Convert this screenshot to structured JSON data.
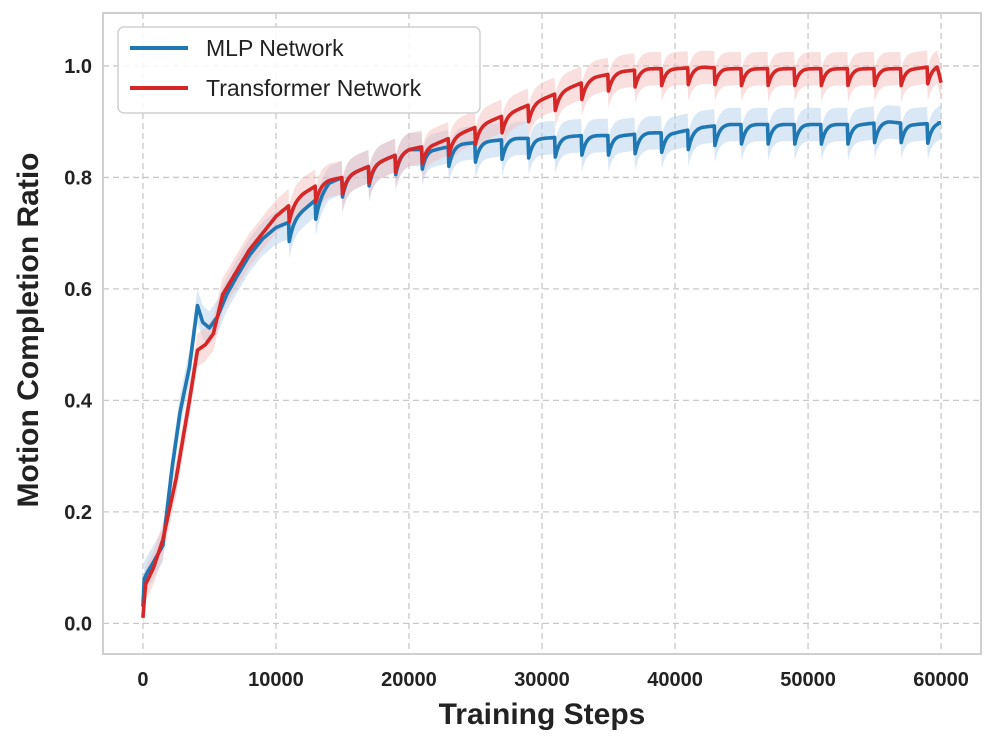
{
  "chart_data": {
    "type": "line",
    "title": "",
    "xlabel": "Training Steps",
    "ylabel": "Motion Completion Ratio",
    "xlim": [
      -3000,
      63000
    ],
    "ylim": [
      -0.055,
      1.095
    ],
    "xticks": [
      0,
      10000,
      20000,
      30000,
      40000,
      50000,
      60000
    ],
    "xtick_labels": [
      "0",
      "10000",
      "20000",
      "30000",
      "40000",
      "50000",
      "60000"
    ],
    "yticks": [
      0.0,
      0.2,
      0.4,
      0.6,
      0.8,
      1.0
    ],
    "ytick_labels": [
      "0.0",
      "0.2",
      "0.4",
      "0.6",
      "0.8",
      "1.0"
    ],
    "grid": true,
    "legend_position": "top-left",
    "series": [
      {
        "name": "MLP Network",
        "color": "#1f77b4",
        "band_color": "#aecde8",
        "points": [
          [
            0,
            0.03
          ],
          [
            100,
            0.08
          ],
          [
            300,
            0.09
          ],
          [
            800,
            0.11
          ],
          [
            1500,
            0.14
          ],
          [
            2200,
            0.28
          ],
          [
            2800,
            0.38
          ],
          [
            3500,
            0.46
          ],
          [
            4100,
            0.57
          ],
          [
            4500,
            0.54
          ],
          [
            5000,
            0.53
          ],
          [
            5600,
            0.55
          ],
          [
            6300,
            0.59
          ],
          [
            7000,
            0.62
          ],
          [
            8000,
            0.66
          ],
          [
            9000,
            0.69
          ],
          [
            10000,
            0.71
          ],
          [
            11000,
            0.72
          ],
          [
            12000,
            0.74
          ],
          [
            13000,
            0.76
          ],
          [
            14000,
            0.79
          ],
          [
            15000,
            0.8
          ],
          [
            16000,
            0.81
          ],
          [
            17000,
            0.82
          ],
          [
            18000,
            0.83
          ],
          [
            20000,
            0.85
          ],
          [
            22000,
            0.85
          ],
          [
            24000,
            0.86
          ],
          [
            26000,
            0.865
          ],
          [
            28000,
            0.87
          ],
          [
            30000,
            0.87
          ],
          [
            33000,
            0.875
          ],
          [
            36000,
            0.875
          ],
          [
            38000,
            0.88
          ],
          [
            40000,
            0.88
          ],
          [
            42000,
            0.89
          ],
          [
            44000,
            0.895
          ],
          [
            46000,
            0.895
          ],
          [
            48000,
            0.895
          ],
          [
            50000,
            0.895
          ],
          [
            52000,
            0.895
          ],
          [
            54000,
            0.895
          ],
          [
            56000,
            0.9
          ],
          [
            58000,
            0.895
          ],
          [
            60000,
            0.898
          ]
        ],
        "band_halfwidth": 0.03,
        "sawtooth_period": 1000,
        "sawtooth_start": 11000,
        "sawtooth_depth": 0.035
      },
      {
        "name": "Transformer Network",
        "color": "#d62728",
        "band_color": "#f4b9b9",
        "points": [
          [
            0,
            0.01
          ],
          [
            200,
            0.07
          ],
          [
            800,
            0.1
          ],
          [
            1500,
            0.15
          ],
          [
            2500,
            0.26
          ],
          [
            3500,
            0.4
          ],
          [
            4100,
            0.49
          ],
          [
            4700,
            0.5
          ],
          [
            5300,
            0.52
          ],
          [
            6000,
            0.59
          ],
          [
            7000,
            0.63
          ],
          [
            8000,
            0.67
          ],
          [
            9000,
            0.7
          ],
          [
            10000,
            0.73
          ],
          [
            11000,
            0.75
          ],
          [
            12000,
            0.77
          ],
          [
            13000,
            0.785
          ],
          [
            14000,
            0.795
          ],
          [
            15000,
            0.8
          ],
          [
            16000,
            0.81
          ],
          [
            17000,
            0.82
          ],
          [
            18000,
            0.83
          ],
          [
            20000,
            0.85
          ],
          [
            22000,
            0.86
          ],
          [
            24000,
            0.88
          ],
          [
            26000,
            0.9
          ],
          [
            28000,
            0.92
          ],
          [
            30000,
            0.94
          ],
          [
            32000,
            0.96
          ],
          [
            34000,
            0.98
          ],
          [
            36000,
            0.99
          ],
          [
            38000,
            0.995
          ],
          [
            40000,
            0.995
          ],
          [
            42000,
            0.998
          ],
          [
            44000,
            0.995
          ],
          [
            46000,
            0.995
          ],
          [
            48000,
            0.995
          ],
          [
            50000,
            0.995
          ],
          [
            52000,
            0.995
          ],
          [
            54000,
            0.995
          ],
          [
            56000,
            0.995
          ],
          [
            58000,
            0.995
          ],
          [
            59700,
            1.0
          ],
          [
            60000,
            0.97
          ]
        ],
        "band_halfwidth": 0.03,
        "sawtooth_period": 1000,
        "sawtooth_start": 11000,
        "sawtooth_depth": 0.03
      }
    ]
  }
}
